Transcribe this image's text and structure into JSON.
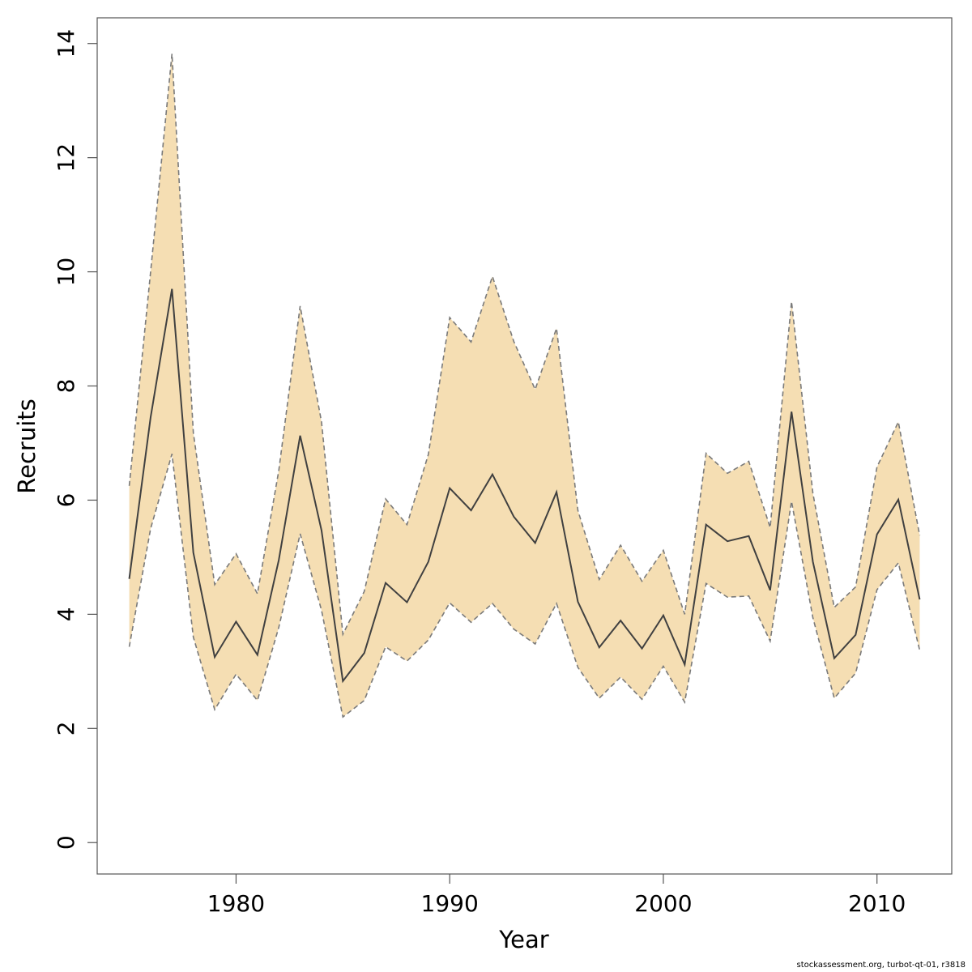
{
  "chart_data": {
    "type": "area",
    "xlabel": "Year",
    "ylabel": "Recruits",
    "xlim": [
      1973.5,
      2013.5
    ],
    "ylim": [
      -0.55,
      14.45
    ],
    "xticks": [
      1980,
      1990,
      2000,
      2010
    ],
    "yticks": [
      0,
      2,
      4,
      6,
      8,
      10,
      12,
      14
    ],
    "grid": false,
    "legend": "none",
    "x": [
      1975,
      1976,
      1977,
      1978,
      1979,
      1980,
      1981,
      1982,
      1983,
      1984,
      1985,
      1986,
      1987,
      1988,
      1989,
      1990,
      1991,
      1992,
      1993,
      1994,
      1995,
      1996,
      1997,
      1998,
      1999,
      2000,
      2001,
      2002,
      2003,
      2004,
      2005,
      2006,
      2007,
      2008,
      2009,
      2010,
      2011,
      2012
    ],
    "series": [
      {
        "role": "estimate",
        "values": [
          4.62,
          7.45,
          9.7,
          5.08,
          3.25,
          3.87,
          3.29,
          4.95,
          7.13,
          5.47,
          2.83,
          3.32,
          4.55,
          4.21,
          4.92,
          6.21,
          5.82,
          6.45,
          5.71,
          5.25,
          6.14,
          4.22,
          3.42,
          3.89,
          3.4,
          3.98,
          3.12,
          5.57,
          5.28,
          5.37,
          4.42,
          7.55,
          4.92,
          3.23,
          3.64,
          5.4,
          6.01,
          4.26
        ]
      },
      {
        "role": "upper",
        "values": [
          6.25,
          10.0,
          13.82,
          7.18,
          4.52,
          5.06,
          4.36,
          6.52,
          9.4,
          7.37,
          3.65,
          4.4,
          6.02,
          5.57,
          6.8,
          9.2,
          8.77,
          9.92,
          8.78,
          7.94,
          9.01,
          5.82,
          4.61,
          5.21,
          4.58,
          5.12,
          4.0,
          6.82,
          6.47,
          6.68,
          5.52,
          9.48,
          6.12,
          4.12,
          4.48,
          6.58,
          7.37,
          5.38
        ]
      },
      {
        "role": "lower",
        "values": [
          3.43,
          5.5,
          6.81,
          3.6,
          2.33,
          2.95,
          2.49,
          3.77,
          5.41,
          4.07,
          2.2,
          2.49,
          3.43,
          3.18,
          3.55,
          4.2,
          3.86,
          4.19,
          3.74,
          3.48,
          4.19,
          3.07,
          2.53,
          2.9,
          2.51,
          3.09,
          2.46,
          4.54,
          4.3,
          4.32,
          3.53,
          5.98,
          3.94,
          2.53,
          2.97,
          4.43,
          4.9,
          3.37
        ]
      }
    ],
    "colors": {
      "band": "#f5deb3",
      "bound_line": "#7a7a7a",
      "estimate_line": "#404040",
      "axis": "#555555"
    }
  },
  "footer": {
    "text": "stockassessment.org, turbot-qt-01, r3818"
  }
}
